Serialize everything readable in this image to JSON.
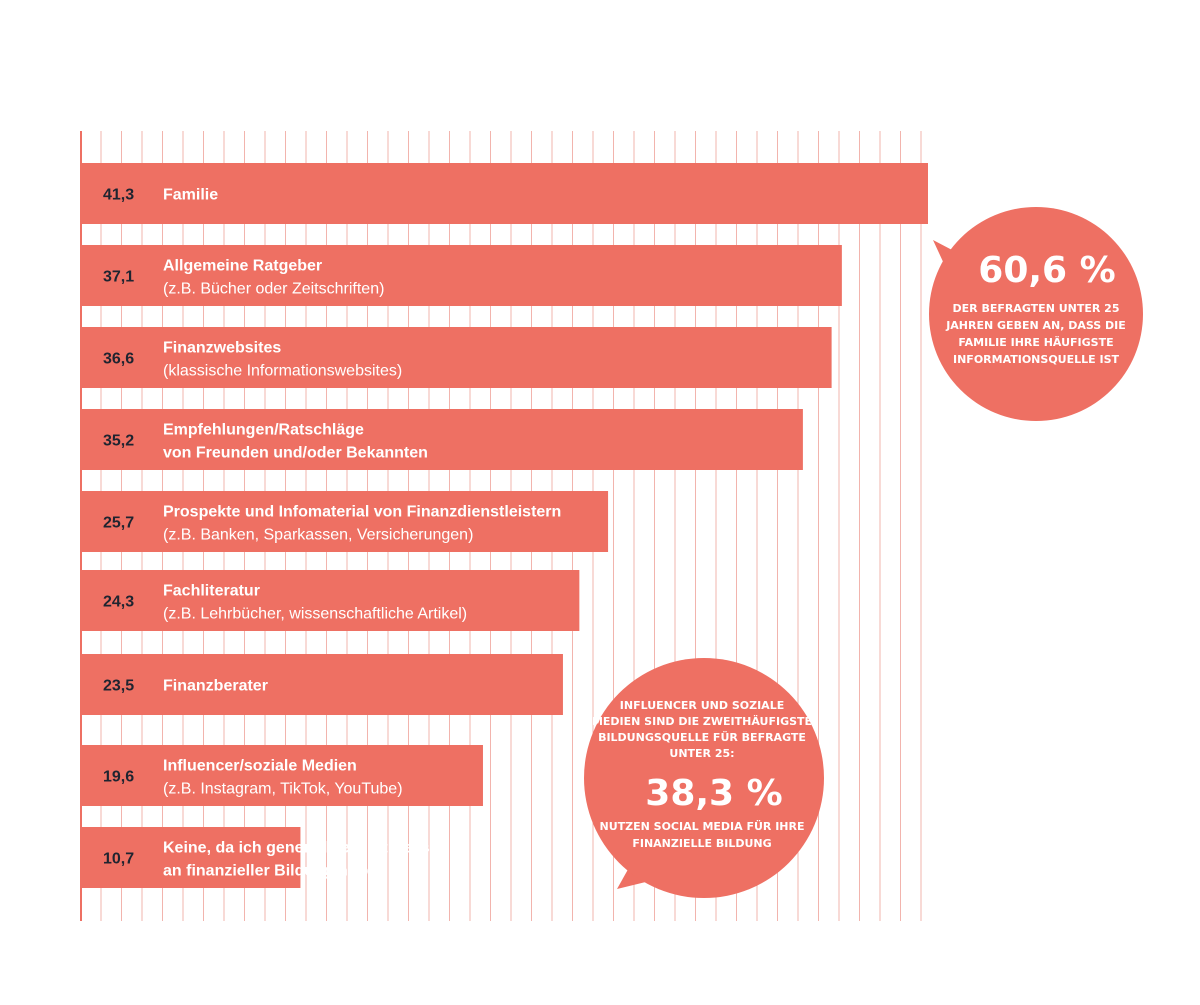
{
  "colors": {
    "bar": "#ee7063",
    "grid": "#f2b4ad",
    "axis": "#ee7063",
    "value_text": "#1f2430",
    "label_text": "#ffffff",
    "callout_bg": "#ee7063"
  },
  "chart_data": {
    "type": "bar",
    "orientation": "horizontal",
    "xlim": [
      0,
      41.3
    ],
    "grid": true,
    "categories": [
      {
        "value": "41,3",
        "line1": "Familie",
        "line2": ""
      },
      {
        "value": "37,1",
        "line1": "Allgemeine Ratgeber",
        "line2": "(z.B.  Bücher oder Zeitschriften)"
      },
      {
        "value": "36,6",
        "line1": "Finanzwebsites",
        "line2": "(klassische Informationswebsites)"
      },
      {
        "value": "35,2",
        "line1": "Empfehlungen/Ratschläge",
        "line2": "von Freunden und/oder Bekannten",
        "line2_bold": true
      },
      {
        "value": "25,7",
        "line1": "Prospekte und Infomaterial von Finanzdienstleistern",
        "line2": "(z.B. Banken, Sparkassen, Versicherungen)"
      },
      {
        "value": "24,3",
        "line1": "Fachliteratur",
        "line2": "(z.B. Lehrbücher, wissenschaftliche Artikel)"
      },
      {
        "value": "23,5",
        "line1": "Finanzberater",
        "line2": ""
      },
      {
        "value": "19,6",
        "line1": "Influencer/soziale Medien",
        "line2": "(z.B. Instagram, TikTok, YouTube)"
      },
      {
        "value": "10,7",
        "line1": "Keine, da ich generell kein Interesse",
        "line2": "an finanzieller Bildung habe",
        "line2_bold": true
      }
    ],
    "values": [
      41.3,
      37.1,
      36.6,
      35.2,
      25.7,
      24.3,
      23.5,
      19.6,
      10.7
    ]
  },
  "callouts": [
    {
      "big": "60,6 %",
      "small": [
        "DER BEFRAGTEN UNTER 25",
        "JAHREN GEBEN AN, DASS DIE",
        "FAMILIE IHRE HÄUFIGSTE",
        "INFORMATIONSQUELLE IST"
      ]
    },
    {
      "intro": [
        "INFLUENCER UND SOZIALE",
        "MEDIEN SIND DIE ZWEITHÄUFIGSTE",
        "BILDUNGSQUELLE FÜR BEFRAGTE",
        "UNTER 25:"
      ],
      "big": "38,3 %",
      "small": [
        "NUTZEN SOCIAL MEDIA FÜR IHRE",
        "FINANZIELLE BILDUNG"
      ]
    }
  ]
}
